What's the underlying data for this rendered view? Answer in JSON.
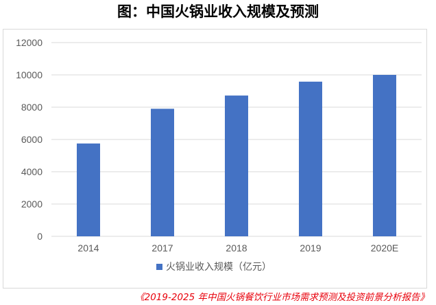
{
  "title": "图：中国火锅业收入规模及预测",
  "source_note": "《2019-2025 年中国火锅餐饮行业市场需求预测及投资前景分析报告》",
  "colors": {
    "bar": "#4472c4",
    "grid": "#d9d9d9",
    "axis_text": "#595959",
    "source_text": "#e8000b"
  },
  "chart_data": {
    "type": "bar",
    "title": "",
    "xlabel": "",
    "ylabel": "",
    "categories": [
      "2014",
      "2017",
      "2018",
      "2019",
      "2020E"
    ],
    "series": [
      {
        "name": "火锅业收入规模（亿元）",
        "values": [
          5750,
          7900,
          8720,
          9580,
          10000
        ]
      }
    ],
    "ylim": [
      0,
      12000
    ],
    "yticks": [
      0,
      2000,
      4000,
      6000,
      8000,
      10000,
      12000
    ],
    "grid": true,
    "legend_position": "bottom"
  }
}
